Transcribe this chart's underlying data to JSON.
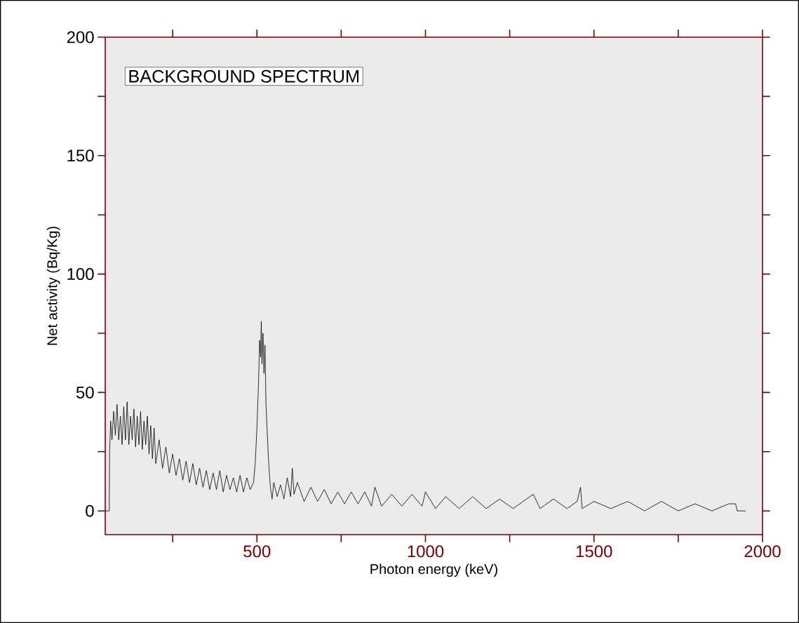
{
  "chart_data": {
    "type": "line",
    "xlabel": "Photon energy  (keV)",
    "ylabel": "Net  activity  (Bq/Kg)",
    "annotations": [
      "BACKGROUND SPECTRUM"
    ],
    "xlim": [
      50,
      2000
    ],
    "ylim": [
      -10,
      200
    ],
    "xticks": [
      {
        "value": 250,
        "label": null
      },
      500,
      {
        "value": 750,
        "label": null
      },
      1000,
      {
        "value": 1250,
        "label": null
      },
      1500,
      {
        "value": 1750,
        "label": null
      },
      2000
    ],
    "yticks": [
      0,
      {
        "value": 25,
        "label": null
      },
      50,
      {
        "value": 75,
        "label": null
      },
      100,
      {
        "value": 125,
        "label": null
      },
      150,
      {
        "value": 175,
        "label": null
      },
      200
    ],
    "series": [
      {
        "color": "#000000",
        "x": [
          50,
          62,
          63,
          66,
          70,
          75,
          80,
          85,
          90,
          95,
          100,
          105,
          110,
          115,
          120,
          125,
          130,
          135,
          140,
          145,
          150,
          155,
          160,
          165,
          170,
          175,
          180,
          185,
          190,
          195,
          200,
          210,
          220,
          230,
          240,
          250,
          260,
          270,
          280,
          290,
          300,
          310,
          320,
          330,
          340,
          350,
          360,
          370,
          380,
          390,
          400,
          410,
          420,
          430,
          440,
          450,
          460,
          470,
          480,
          490,
          495,
          500,
          505,
          508,
          511,
          513,
          515,
          518,
          521,
          524,
          527,
          530,
          535,
          540,
          545,
          550,
          560,
          570,
          580,
          590,
          600,
          605,
          610,
          620,
          640,
          660,
          680,
          700,
          720,
          740,
          760,
          780,
          800,
          820,
          840,
          850,
          870,
          900,
          930,
          960,
          990,
          1000,
          1030,
          1060,
          1100,
          1140,
          1180,
          1220,
          1260,
          1300,
          1320,
          1340,
          1380,
          1420,
          1450,
          1460,
          1465,
          1500,
          1550,
          1600,
          1650,
          1700,
          1750,
          1800,
          1850,
          1900,
          1920,
          1925,
          1950
        ],
        "values": [
          0,
          0,
          25,
          38,
          30,
          42,
          32,
          45,
          30,
          40,
          28,
          44,
          30,
          46,
          28,
          40,
          30,
          43,
          27,
          40,
          28,
          42,
          26,
          38,
          28,
          40,
          24,
          36,
          22,
          35,
          20,
          30,
          18,
          27,
          16,
          24,
          15,
          22,
          13,
          21,
          12,
          20,
          11,
          18,
          10,
          17,
          9,
          16,
          9,
          17,
          8,
          15,
          9,
          14,
          8,
          15,
          8,
          14,
          9,
          12,
          20,
          35,
          55,
          72,
          65,
          80,
          62,
          75,
          58,
          70,
          45,
          35,
          20,
          10,
          5,
          12,
          6,
          11,
          5,
          14,
          6,
          18,
          7,
          12,
          4,
          10,
          4,
          9,
          3,
          8,
          3,
          8,
          3,
          8,
          2,
          10,
          2,
          7,
          2,
          7,
          2,
          8,
          1,
          6,
          1,
          6,
          1,
          5,
          1,
          5,
          7,
          1,
          5,
          1,
          4,
          10,
          1,
          4,
          1,
          4,
          0,
          4,
          0,
          3,
          0,
          3,
          3,
          0,
          0
        ]
      }
    ]
  }
}
